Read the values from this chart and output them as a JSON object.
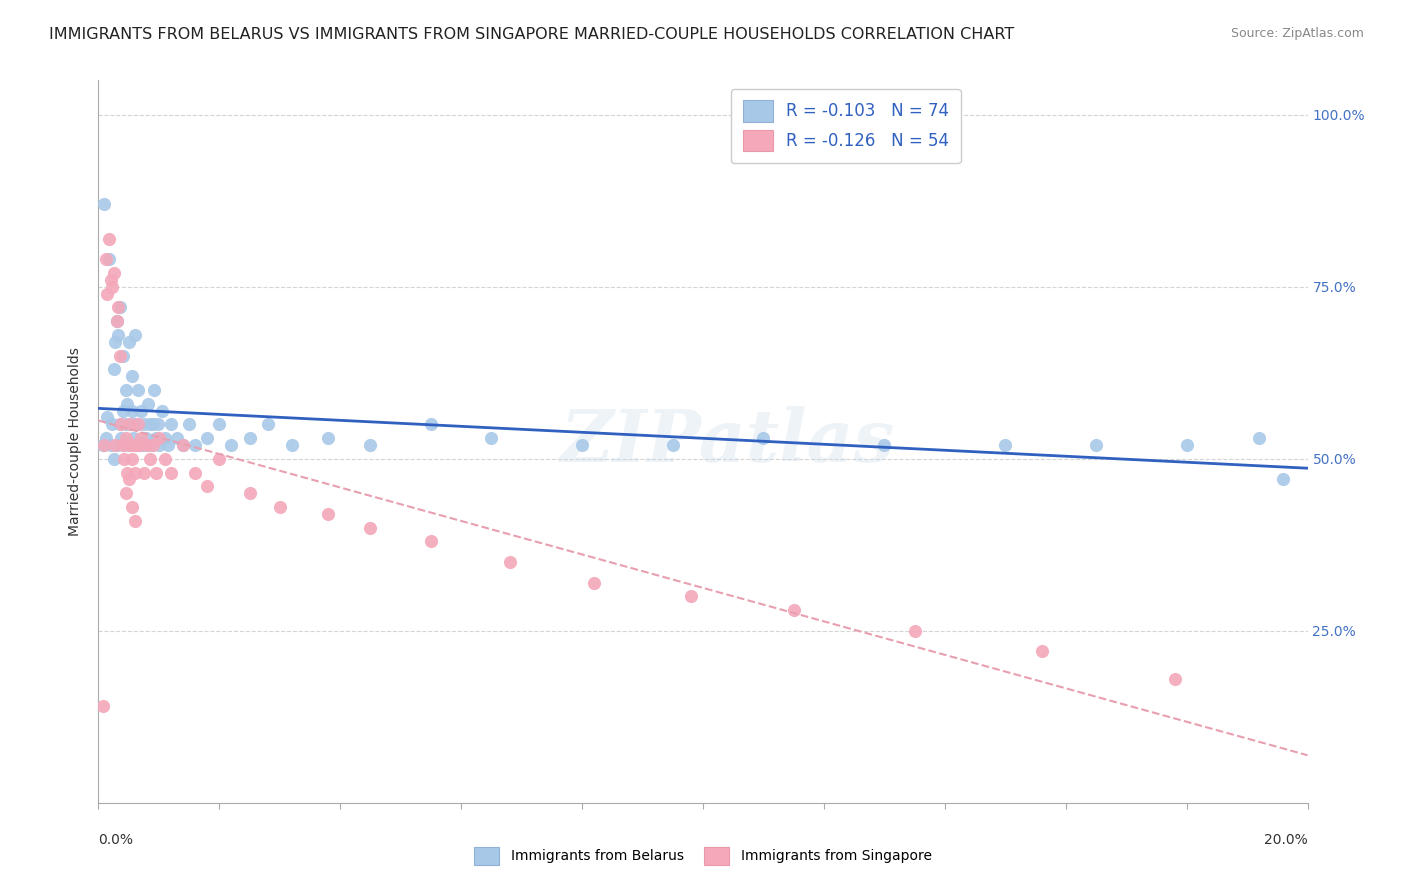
{
  "title": "IMMIGRANTS FROM BELARUS VS IMMIGRANTS FROM SINGAPORE MARRIED-COUPLE HOUSEHOLDS CORRELATION CHART",
  "source": "Source: ZipAtlas.com",
  "ylabel": "Married-couple Households",
  "x_range": [
    0.0,
    0.2
  ],
  "y_range": [
    0.0,
    1.05
  ],
  "watermark": "ZIPatlas",
  "legend_belarus_R": -0.103,
  "legend_belarus_N": 74,
  "legend_singapore_R": -0.126,
  "legend_singapore_N": 54,
  "color_belarus": "#a8c8e8",
  "color_singapore": "#f4a8ba",
  "color_trendline_belarus": "#3060c0",
  "color_trendline_singapore": "#e8a0b0",
  "background_color": "#ffffff",
  "grid_color": "#d0d0d0",
  "title_fontsize": 11.5,
  "axis_label_fontsize": 10,
  "tick_fontsize": 10,
  "right_ytick_color": "#4472c4",
  "belarus_x": [
    0.0008,
    0.001,
    0.0012,
    0.0015,
    0.0018,
    0.002,
    0.0022,
    0.0025,
    0.0025,
    0.0028,
    0.003,
    0.003,
    0.0032,
    0.0035,
    0.0035,
    0.0038,
    0.004,
    0.004,
    0.0042,
    0.0045,
    0.0045,
    0.0048,
    0.005,
    0.005,
    0.0052,
    0.0055,
    0.0055,
    0.0058,
    0.006,
    0.006,
    0.0062,
    0.0065,
    0.0065,
    0.0068,
    0.007,
    0.0072,
    0.0075,
    0.0078,
    0.008,
    0.0082,
    0.0085,
    0.0088,
    0.009,
    0.0092,
    0.0095,
    0.0098,
    0.01,
    0.0105,
    0.011,
    0.0115,
    0.012,
    0.013,
    0.014,
    0.015,
    0.016,
    0.018,
    0.02,
    0.022,
    0.025,
    0.028,
    0.032,
    0.038,
    0.045,
    0.055,
    0.065,
    0.08,
    0.095,
    0.11,
    0.13,
    0.15,
    0.165,
    0.18,
    0.192,
    0.196
  ],
  "belarus_y": [
    0.52,
    0.87,
    0.53,
    0.56,
    0.79,
    0.52,
    0.55,
    0.5,
    0.63,
    0.67,
    0.52,
    0.7,
    0.68,
    0.55,
    0.72,
    0.53,
    0.57,
    0.65,
    0.52,
    0.6,
    0.55,
    0.58,
    0.52,
    0.67,
    0.55,
    0.62,
    0.57,
    0.53,
    0.68,
    0.55,
    0.52,
    0.6,
    0.55,
    0.52,
    0.57,
    0.52,
    0.55,
    0.53,
    0.52,
    0.58,
    0.55,
    0.52,
    0.55,
    0.6,
    0.53,
    0.55,
    0.52,
    0.57,
    0.53,
    0.52,
    0.55,
    0.53,
    0.52,
    0.55,
    0.52,
    0.53,
    0.55,
    0.52,
    0.53,
    0.55,
    0.52,
    0.53,
    0.52,
    0.55,
    0.53,
    0.52,
    0.52,
    0.53,
    0.52,
    0.52,
    0.52,
    0.52,
    0.53,
    0.47
  ],
  "singapore_x": [
    0.0008,
    0.001,
    0.0012,
    0.0015,
    0.0018,
    0.002,
    0.0022,
    0.0025,
    0.0028,
    0.003,
    0.0032,
    0.0035,
    0.0038,
    0.004,
    0.0042,
    0.0045,
    0.0048,
    0.005,
    0.0052,
    0.0055,
    0.0058,
    0.006,
    0.0062,
    0.0065,
    0.0068,
    0.007,
    0.0075,
    0.008,
    0.0085,
    0.009,
    0.0095,
    0.01,
    0.011,
    0.012,
    0.014,
    0.016,
    0.018,
    0.02,
    0.025,
    0.03,
    0.038,
    0.045,
    0.055,
    0.068,
    0.082,
    0.098,
    0.115,
    0.135,
    0.156,
    0.178,
    0.0045,
    0.005,
    0.0055,
    0.006
  ],
  "singapore_y": [
    0.14,
    0.52,
    0.79,
    0.74,
    0.82,
    0.76,
    0.75,
    0.77,
    0.52,
    0.7,
    0.72,
    0.65,
    0.55,
    0.52,
    0.5,
    0.53,
    0.48,
    0.52,
    0.55,
    0.5,
    0.52,
    0.48,
    0.52,
    0.55,
    0.52,
    0.53,
    0.48,
    0.52,
    0.5,
    0.52,
    0.48,
    0.53,
    0.5,
    0.48,
    0.52,
    0.48,
    0.46,
    0.5,
    0.45,
    0.43,
    0.42,
    0.4,
    0.38,
    0.35,
    0.32,
    0.3,
    0.28,
    0.25,
    0.22,
    0.18,
    0.45,
    0.47,
    0.43,
    0.41
  ]
}
